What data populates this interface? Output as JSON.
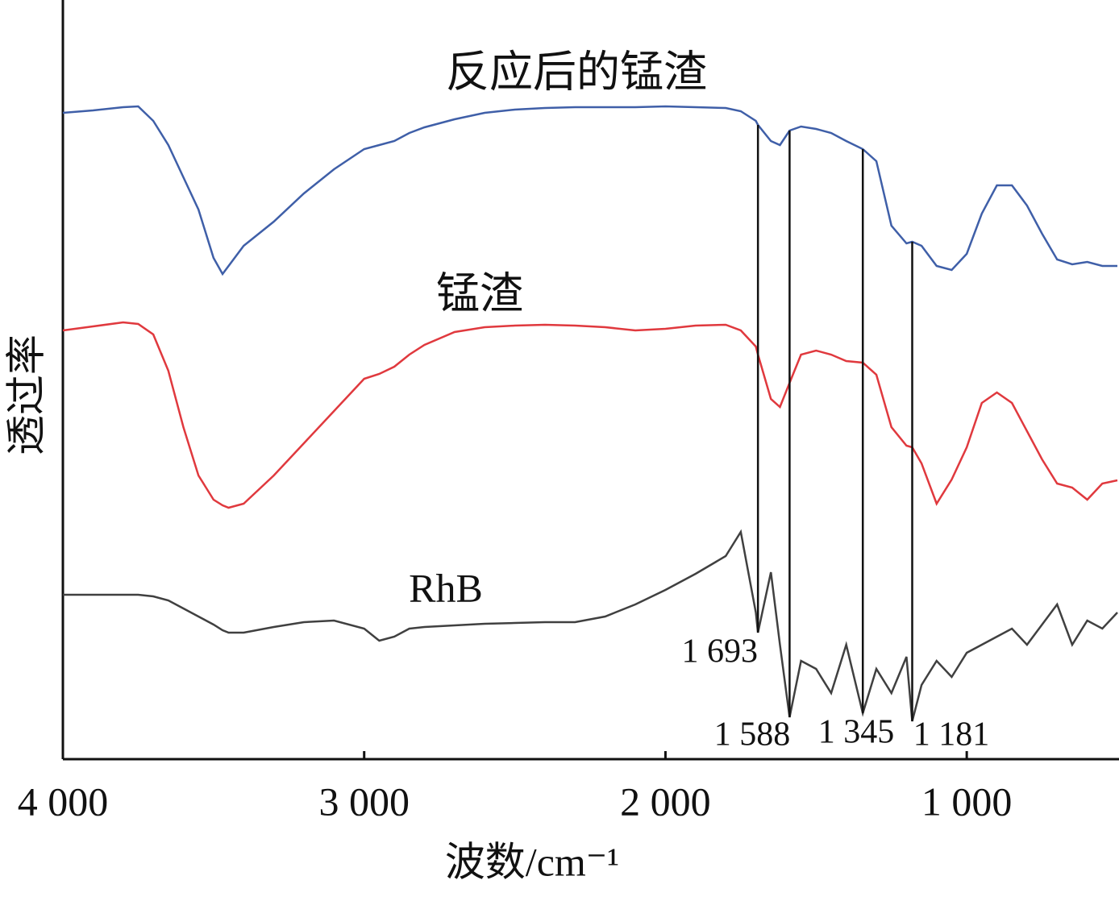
{
  "chart_data": {
    "type": "line",
    "xlabel": "波数/cm⁻¹",
    "ylabel": "透过率",
    "xlim": [
      4000,
      500
    ],
    "ylim": [
      0,
      942
    ],
    "xticks": [
      {
        "value": 4000,
        "label": "4 000"
      },
      {
        "value": 3000,
        "label": "3 000"
      },
      {
        "value": 2000,
        "label": "2 000"
      },
      {
        "value": 1000,
        "label": "1 000"
      }
    ],
    "grid": false,
    "x": [
      4000,
      3900,
      3800,
      3750,
      3700,
      3650,
      3600,
      3550,
      3500,
      3470,
      3450,
      3400,
      3300,
      3200,
      3100,
      3000,
      2950,
      2900,
      2850,
      2800,
      2700,
      2600,
      2500,
      2400,
      2300,
      2200,
      2100,
      2000,
      1900,
      1800,
      1750,
      1700,
      1693,
      1650,
      1620,
      1588,
      1550,
      1500,
      1450,
      1400,
      1345,
      1300,
      1250,
      1200,
      1181,
      1150,
      1100,
      1050,
      1000,
      950,
      900,
      850,
      800,
      750,
      700,
      650,
      600,
      550,
      500
    ],
    "series": [
      {
        "name": "反应后的锰渣",
        "color": "#3f5fa8",
        "values": [
          802,
          805,
          809,
          810,
          792,
          762,
          722,
          682,
          622,
          602,
          612,
          637,
          667,
          702,
          732,
          757,
          762,
          767,
          777,
          784,
          794,
          802,
          806,
          808,
          809,
          809,
          809,
          810,
          809,
          808,
          804,
          792,
          787,
          767,
          762,
          780,
          785,
          782,
          777,
          767,
          757,
          742,
          662,
          640,
          642,
          637,
          612,
          607,
          627,
          677,
          712,
          712,
          687,
          652,
          620,
          614,
          617,
          612,
          612
        ]
      },
      {
        "name": "锰渣",
        "color": "#e0393e",
        "values": [
          532,
          537,
          542,
          540,
          527,
          482,
          412,
          352,
          322,
          315,
          312,
          317,
          352,
          392,
          432,
          472,
          478,
          487,
          502,
          514,
          530,
          536,
          538,
          539,
          538,
          536,
          532,
          534,
          538,
          539,
          532,
          512,
          502,
          447,
          437,
          467,
          502,
          507,
          502,
          494,
          492,
          477,
          412,
          389,
          387,
          367,
          317,
          347,
          387,
          442,
          455,
          442,
          407,
          372,
          342,
          337,
          322,
          342,
          346
        ]
      },
      {
        "name": "RhB",
        "color": "#404040",
        "values": [
          204,
          204,
          204,
          204,
          202,
          197,
          187,
          177,
          167,
          160,
          157,
          157,
          164,
          170,
          172,
          162,
          147,
          152,
          162,
          164,
          166,
          168,
          169,
          170,
          170,
          177,
          192,
          210,
          230,
          252,
          282,
          182,
          157,
          232,
          142,
          52,
          122,
          112,
          82,
          142,
          57,
          112,
          82,
          127,
          47,
          92,
          122,
          102,
          132,
          142,
          152,
          162,
          142,
          167,
          192,
          142,
          172,
          162,
          182
        ]
      }
    ],
    "annotations": [
      {
        "value": 1693,
        "label": "1 693"
      },
      {
        "value": 1588,
        "label": "1 588"
      },
      {
        "value": 1345,
        "label": "1 345"
      },
      {
        "value": 1181,
        "label": "1 181"
      }
    ]
  }
}
